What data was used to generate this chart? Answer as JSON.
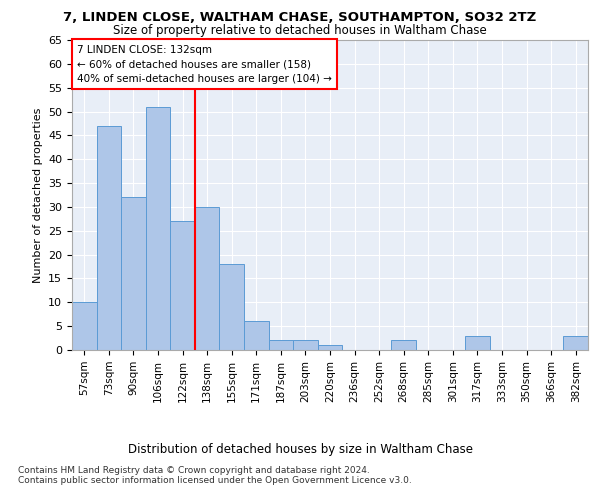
{
  "title1": "7, LINDEN CLOSE, WALTHAM CHASE, SOUTHAMPTON, SO32 2TZ",
  "title2": "Size of property relative to detached houses in Waltham Chase",
  "xlabel": "Distribution of detached houses by size in Waltham Chase",
  "ylabel": "Number of detached properties",
  "categories": [
    "57sqm",
    "73sqm",
    "90sqm",
    "106sqm",
    "122sqm",
    "138sqm",
    "155sqm",
    "171sqm",
    "187sqm",
    "203sqm",
    "220sqm",
    "236sqm",
    "252sqm",
    "268sqm",
    "285sqm",
    "301sqm",
    "317sqm",
    "333sqm",
    "350sqm",
    "366sqm",
    "382sqm"
  ],
  "values": [
    10,
    47,
    32,
    51,
    27,
    30,
    18,
    6,
    2,
    2,
    1,
    0,
    0,
    2,
    0,
    0,
    3,
    0,
    0,
    0,
    3
  ],
  "bar_color": "#aec6e8",
  "bar_edge_color": "#5b9bd5",
  "redline_x": 4.5,
  "redline_label": "7 LINDEN CLOSE: 132sqm",
  "annotation_line1": "← 60% of detached houses are smaller (158)",
  "annotation_line2": "40% of semi-detached houses are larger (104) →",
  "ylim": [
    0,
    65
  ],
  "yticks": [
    0,
    5,
    10,
    15,
    20,
    25,
    30,
    35,
    40,
    45,
    50,
    55,
    60,
    65
  ],
  "footnote1": "Contains HM Land Registry data © Crown copyright and database right 2024.",
  "footnote2": "Contains public sector information licensed under the Open Government Licence v3.0.",
  "background_color": "#e8eef7"
}
